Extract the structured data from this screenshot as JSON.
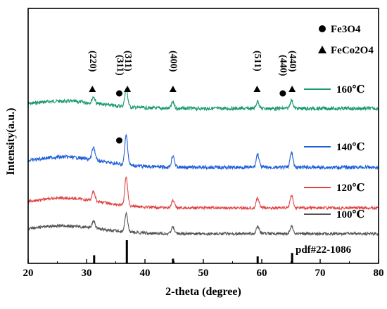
{
  "chart_data": {
    "type": "line",
    "xlabel": "2-theta (degree)",
    "ylabel": "Intensity(a.u.)",
    "xlim": [
      20,
      80
    ],
    "x_ticks": [
      20,
      30,
      40,
      50,
      60,
      70,
      80
    ],
    "grid": false,
    "legend": {
      "placement": "right",
      "symbols": [
        {
          "marker": "circle",
          "text": "Fe3O4"
        },
        {
          "marker": "triangle",
          "text": "FeCo2O4"
        }
      ]
    },
    "series": [
      {
        "name": "160℃",
        "color": "#1a9a6c",
        "peaks": [
          31.2,
          36.8,
          44.8,
          59.3,
          65.1
        ],
        "peak_heights": [
          0.3,
          0.85,
          0.3,
          0.35,
          0.4
        ]
      },
      {
        "name": "140℃",
        "color": "#2060d8",
        "peaks": [
          31.2,
          36.8,
          44.8,
          59.3,
          65.1
        ],
        "peak_heights": [
          0.45,
          1.0,
          0.4,
          0.45,
          0.5
        ]
      },
      {
        "name": "120℃",
        "color": "#e04545",
        "peaks": [
          31.2,
          36.8,
          44.8,
          59.3,
          65.1
        ],
        "peak_heights": [
          0.35,
          1.0,
          0.25,
          0.35,
          0.45
        ]
      },
      {
        "name": "100℃",
        "color": "#555555",
        "peaks": [
          31.2,
          36.8,
          44.8,
          59.3,
          65.1
        ],
        "peak_heights": [
          0.35,
          0.8,
          0.3,
          0.3,
          0.35
        ]
      }
    ],
    "reference": {
      "label": "pdf#22-1086",
      "peaks": [
        {
          "x": 31.3,
          "intensity": 0.35
        },
        {
          "x": 36.9,
          "intensity": 1.0
        },
        {
          "x": 44.8,
          "intensity": 0.2
        },
        {
          "x": 59.3,
          "intensity": 0.3
        },
        {
          "x": 65.2,
          "intensity": 0.45
        }
      ]
    },
    "annotations": [
      {
        "text": "(220)",
        "x": 31.0,
        "marker": "triangle"
      },
      {
        "text": "(311)",
        "x": 35.6,
        "marker": "circle"
      },
      {
        "text": "(311)",
        "x": 37.0,
        "marker": "triangle"
      },
      {
        "text": "(400)",
        "x": 44.8,
        "marker": "triangle"
      },
      {
        "text": "(511)",
        "x": 59.2,
        "marker": "triangle"
      },
      {
        "text": "(440)",
        "x": 63.6,
        "marker": "circle"
      },
      {
        "text": "(440)",
        "x": 65.2,
        "marker": "triangle"
      }
    ],
    "extra_markers": [
      {
        "series": "140℃",
        "x": 35.6,
        "marker": "circle"
      }
    ]
  }
}
